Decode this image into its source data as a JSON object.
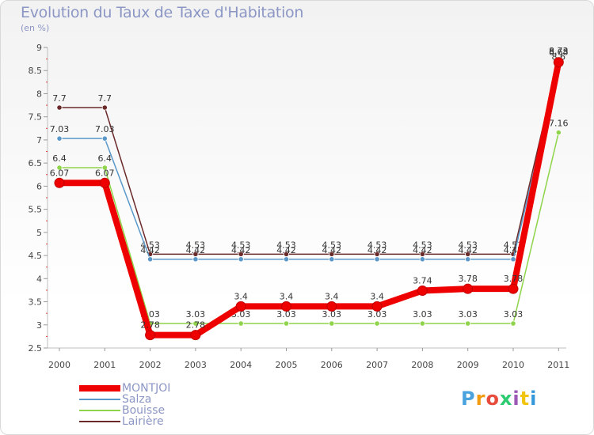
{
  "header": {
    "title": "Evolution du Taux de Taxe d'Habitation",
    "subtitle": "(en %)"
  },
  "brand": {
    "letters": [
      "P",
      "r",
      "o",
      "x",
      "i",
      "t",
      "i"
    ],
    "colors": [
      "#4aa3df",
      "#f39c12",
      "#e74c3c",
      "#2ecc71",
      "#9b59b6",
      "#f1c40f",
      "#3498db"
    ]
  },
  "chart_data": {
    "type": "line",
    "x": [
      "2000",
      "2001",
      "2002",
      "2003",
      "2004",
      "2005",
      "2006",
      "2007",
      "2008",
      "2009",
      "2010",
      "2011"
    ],
    "ylim": [
      2.5,
      9
    ],
    "yticks": [
      "2.5",
      "3",
      "3.5",
      "4",
      "4.5",
      "5",
      "5.5",
      "6",
      "6.5",
      "7",
      "7.5",
      "8",
      "8.5",
      "9"
    ],
    "grid": false,
    "legend_position": "bottom-left",
    "series": [
      {
        "name": "Lairière",
        "color": "#6b2a2a",
        "values": [
          7.7,
          7.7,
          4.53,
          4.53,
          4.53,
          4.53,
          4.53,
          4.53,
          4.53,
          4.53,
          4.53,
          8.73
        ],
        "labels": [
          "7.7",
          "7.7",
          "4.53",
          "4.53",
          "4.53",
          "4.53",
          "4.53",
          "4.53",
          "4.53",
          "4.53",
          "4.53",
          "8.73"
        ]
      },
      {
        "name": "Bouisse",
        "color": "#8fd44a",
        "values": [
          6.4,
          6.4,
          3.03,
          3.03,
          3.03,
          3.03,
          3.03,
          3.03,
          3.03,
          3.03,
          3.03,
          7.16
        ],
        "labels": [
          "6.4",
          "6.4",
          "3.03",
          "3.03",
          "3.03",
          "3.03",
          "3.03",
          "3.03",
          "3.03",
          "3.03",
          "3.03",
          "7.16"
        ]
      },
      {
        "name": "Salza",
        "color": "#5a98c9",
        "values": [
          7.03,
          7.03,
          4.42,
          4.42,
          4.42,
          4.42,
          4.42,
          4.42,
          4.42,
          4.42,
          4.42,
          8.6
        ],
        "labels": [
          "7.03",
          "7.03",
          "4.42",
          "4.42",
          "4.42",
          "4.42",
          "4.42",
          "4.42",
          "4.42",
          "4.42",
          "4.42",
          "8.6"
        ]
      },
      {
        "name": "MONTJOI",
        "color": "#ee0000",
        "values": [
          6.07,
          6.07,
          2.78,
          2.78,
          3.4,
          3.4,
          3.4,
          3.4,
          3.74,
          3.78,
          3.78,
          8.68
        ],
        "labels": [
          "6.07",
          "6.07",
          "2.78",
          "2.78",
          "3.4",
          "3.4",
          "3.4",
          "3.4",
          "3.74",
          "3.78",
          "3.78",
          "8.68"
        ]
      }
    ],
    "legend_order": [
      "MONTJOI",
      "Salza",
      "Bouisse",
      "Lairière"
    ]
  }
}
